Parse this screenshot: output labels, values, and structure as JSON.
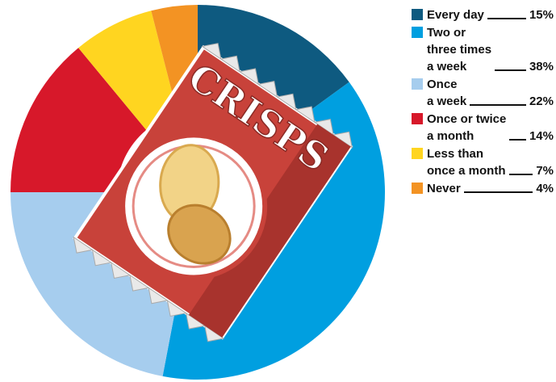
{
  "chart_data": {
    "type": "donut",
    "categories": [
      "Every day",
      "Two or\nthree times\na week",
      "Once\na week",
      "Once or twice\na month",
      "Less than\nonce a month",
      "Never"
    ],
    "values": [
      15,
      38,
      22,
      14,
      7,
      4
    ],
    "value_labels": [
      "15%",
      "38%",
      "22%",
      "14%",
      "7%",
      "4%"
    ],
    "colors": [
      "#0e5a80",
      "#009fe0",
      "#a6cdee",
      "#d7182a",
      "#ffd520",
      "#f39323"
    ]
  },
  "illustration": {
    "text": "CRISPS"
  }
}
